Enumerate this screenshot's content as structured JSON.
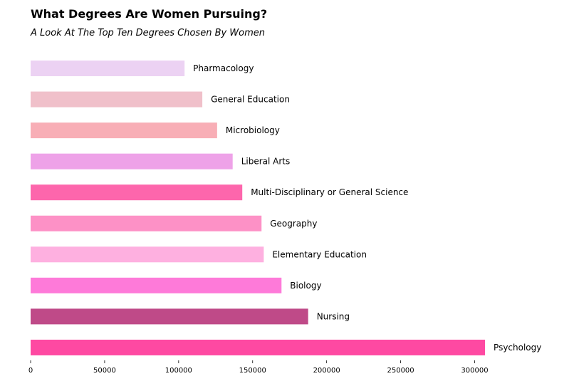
{
  "chart_data": {
    "type": "bar",
    "orientation": "horizontal",
    "title": "What Degrees Are Women Pursuing?",
    "subtitle": "A Look At The Top Ten Degrees Chosen By Women",
    "xlabel": "",
    "ylabel": "",
    "xlim": [
      0,
      325000
    ],
    "xticks": [
      0,
      50000,
      100000,
      150000,
      200000,
      250000,
      300000
    ],
    "xtick_labels": [
      "0",
      "50000",
      "100000",
      "150000",
      "200000",
      "250000",
      "300000"
    ],
    "grid": false,
    "categories": [
      "Pharmacology",
      "General Education",
      "Microbiology",
      "Liberal Arts",
      "Multi-Disciplinary or General Science",
      "Geography",
      "Elementary Education",
      "Biology",
      "Nursing",
      "Psychology"
    ],
    "values": [
      104000,
      116000,
      126000,
      136500,
      143000,
      156000,
      157500,
      169500,
      187500,
      307000
    ],
    "colors": [
      "#ecd2f3",
      "#f0c0ca",
      "#f8aeb6",
      "#eea2e8",
      "#fd66ac",
      "#fd91c6",
      "#feb0e0",
      "#fe7ad9",
      "#bf4a88",
      "#fe49a2"
    ]
  }
}
